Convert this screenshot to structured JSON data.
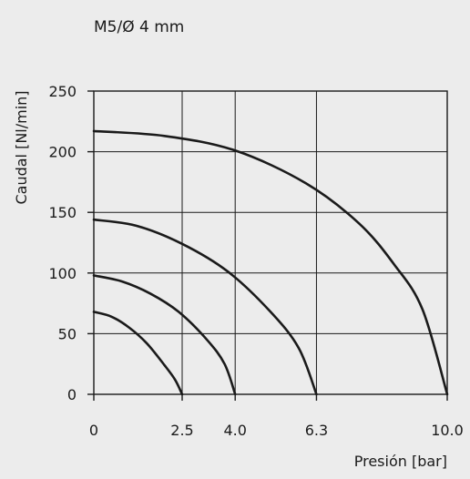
{
  "chart_data": {
    "type": "line",
    "title": "M5/Ø 4 mm",
    "xlabel": "Presión [bar]",
    "ylabel": "Caudal [Nl/min]",
    "xlim": [
      0,
      10
    ],
    "ylim": [
      0,
      250
    ],
    "x_ticks": [
      "0",
      "2.5",
      "4.0",
      "6.3",
      "10.0"
    ],
    "x_tick_values": [
      0,
      2.5,
      4.0,
      6.3,
      10.0
    ],
    "y_ticks": [
      "0",
      "50",
      "100",
      "150",
      "200",
      "250"
    ],
    "y_tick_values": [
      0,
      50,
      100,
      150,
      200,
      250
    ],
    "grid": true,
    "series": [
      {
        "x": [
          0,
          0.5,
          1.0,
          1.5,
          2.0,
          2.3,
          2.5
        ],
        "y": [
          68,
          64,
          55,
          42,
          24,
          12,
          0
        ]
      },
      {
        "x": [
          0,
          0.8,
          1.6,
          2.4,
          3.2,
          3.7,
          4.0
        ],
        "y": [
          98,
          93,
          83,
          68,
          45,
          25,
          0
        ]
      },
      {
        "x": [
          0,
          1.2,
          2.5,
          3.8,
          5.0,
          5.8,
          6.3
        ],
        "y": [
          144,
          139,
          124,
          101,
          68,
          38,
          0
        ]
      },
      {
        "x": [
          0,
          2.0,
          4.0,
          6.0,
          7.5,
          8.5,
          9.3,
          10.0
        ],
        "y": [
          217,
          213,
          201,
          174,
          141,
          107,
          70,
          0
        ]
      }
    ],
    "colors": {
      "curve": "#1a1a1a",
      "grid": "#1a1a1a",
      "background": "#ececec"
    }
  }
}
